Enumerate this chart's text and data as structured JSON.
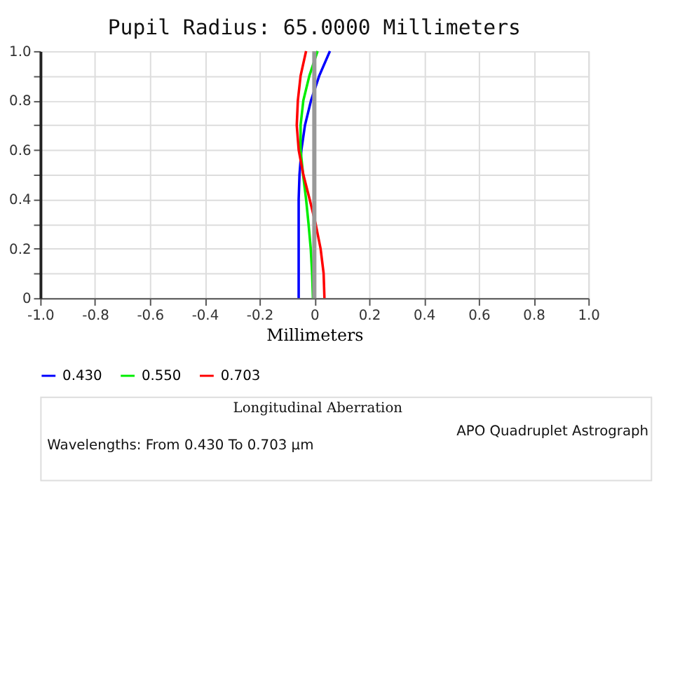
{
  "chart_data": {
    "type": "line",
    "title": "Pupil Radius:  65.0000  Millimeters",
    "xlabel": "Millimeters",
    "xlim": [
      -1,
      1
    ],
    "xticks": [
      {
        "value": -1,
        "label": "-1.0"
      },
      -0.8,
      -0.6,
      -0.4,
      -0.2,
      0,
      0.2,
      0.4,
      0.6,
      0.8,
      {
        "value": 1,
        "label": "1.0"
      }
    ],
    "ylim": [
      0,
      1
    ],
    "yticks": [
      0,
      {
        "value": 0.1,
        "label": null
      },
      0.2,
      {
        "value": 0.3,
        "label": null
      },
      0.4,
      {
        "value": 0.5,
        "label": null
      },
      0.6,
      {
        "value": 0.7,
        "label": null
      },
      0.8,
      {
        "value": 0.9,
        "label": null
      },
      {
        "value": 1,
        "label": "1.0"
      }
    ],
    "grid": true,
    "legend": "bottom",
    "marker": "none",
    "line_style": "solid",
    "ref_lines": [
      {
        "axis": "x",
        "value": 0,
        "color": "#999999"
      }
    ],
    "series": [
      {
        "name": "0.430",
        "color": "#0000ff",
        "x": [
          -0.057,
          -0.057,
          -0.057,
          -0.057,
          -0.057,
          -0.054,
          -0.047,
          -0.034,
          -0.012,
          0.018,
          0.057
        ],
        "values": [
          0,
          0.1,
          0.2,
          0.3,
          0.4,
          0.5,
          0.6,
          0.7,
          0.8,
          0.9,
          1
        ]
      },
      {
        "name": "0.550",
        "color": "#00ee00",
        "x": [
          -0.005,
          -0.008,
          -0.013,
          -0.021,
          -0.03,
          -0.041,
          -0.05,
          -0.05,
          -0.04,
          -0.018,
          0.012
        ],
        "values": [
          0,
          0.1,
          0.2,
          0.3,
          0.4,
          0.5,
          0.6,
          0.7,
          0.8,
          0.9,
          1
        ]
      },
      {
        "name": "0.703",
        "color": "#ff0000",
        "x": [
          0.037,
          0.034,
          0.023,
          0.005,
          -0.017,
          -0.04,
          -0.057,
          -0.064,
          -0.06,
          -0.05,
          -0.03
        ],
        "values": [
          0,
          0.1,
          0.2,
          0.3,
          0.4,
          0.5,
          0.6,
          0.7,
          0.8,
          0.9,
          1
        ]
      }
    ],
    "annotations": [
      "Longitudinal Aberration",
      "Wavelengths:  From 0.430 To 0.703 µm",
      "APO Quadruplet Astrograph"
    ]
  }
}
